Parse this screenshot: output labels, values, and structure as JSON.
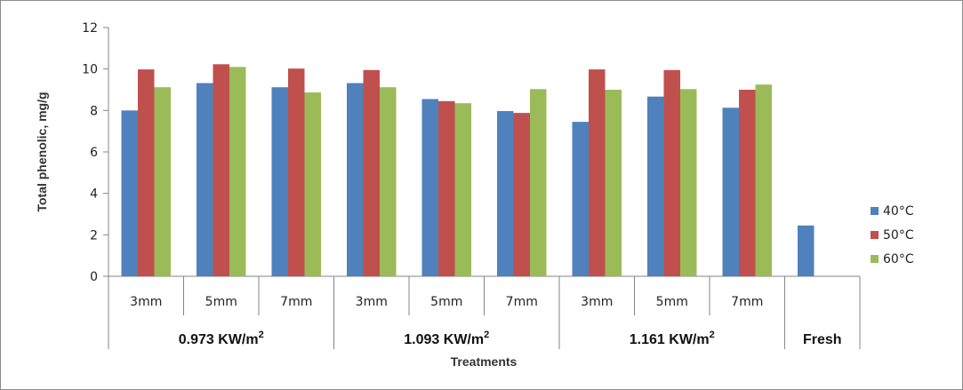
{
  "chart_data": {
    "type": "bar",
    "title": "",
    "xlabel": "Treatments",
    "ylabel": "Total phenolic, mg/g",
    "ylim": [
      0,
      12
    ],
    "yticks": [
      0,
      2,
      4,
      6,
      8,
      10,
      12
    ],
    "grid": false,
    "legend_position": "right",
    "categories": [
      {
        "sub": "3mm",
        "group": 0
      },
      {
        "sub": "5mm",
        "group": 0
      },
      {
        "sub": "7mm",
        "group": 0
      },
      {
        "sub": "3mm",
        "group": 1
      },
      {
        "sub": "5mm",
        "group": 1
      },
      {
        "sub": "7mm",
        "group": 1
      },
      {
        "sub": "3mm",
        "group": 2
      },
      {
        "sub": "5mm",
        "group": 2
      },
      {
        "sub": "7mm",
        "group": 2
      },
      {
        "sub": "",
        "group": 3
      }
    ],
    "groups": [
      {
        "label": "0.973 KW/m",
        "sup": "2"
      },
      {
        "label": "1.093 KW/m",
        "sup": "2"
      },
      {
        "label": "1.161 KW/m",
        "sup": "2"
      },
      {
        "label": "Fresh",
        "sup": ""
      }
    ],
    "series": [
      {
        "name": "40°C",
        "color": "#4F81BD",
        "values": [
          8.0,
          9.32,
          9.12,
          9.32,
          8.55,
          7.97,
          7.45,
          8.67,
          8.13,
          2.45
        ]
      },
      {
        "name": "50°C",
        "color": "#C0504D",
        "values": [
          9.98,
          10.23,
          10.02,
          9.95,
          8.45,
          7.88,
          9.98,
          9.95,
          9.0,
          null
        ]
      },
      {
        "name": "60°C",
        "color": "#9BBB59",
        "values": [
          9.12,
          10.1,
          8.87,
          9.12,
          8.35,
          9.03,
          9.0,
          9.03,
          9.25,
          null
        ]
      }
    ]
  }
}
